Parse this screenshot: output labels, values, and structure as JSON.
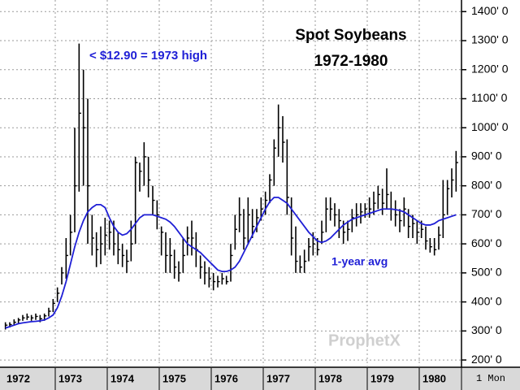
{
  "chart_data": {
    "type": "ohlc",
    "title": "Spot Soybeans",
    "subtitle": "1972-1980",
    "annotations": [
      "< $12.90 = 1973 high",
      "1-year avg"
    ],
    "watermark": "ProphetX",
    "period": "1 Mon",
    "years": [
      "1972",
      "1973",
      "1974",
      "1975",
      "1976",
      "1977",
      "1978",
      "1979",
      "1980"
    ],
    "ylim": [
      175,
      1440
    ],
    "yticks": [
      {
        "value": 200,
        "label": "200' 0"
      },
      {
        "value": 300,
        "label": "300' 0"
      },
      {
        "value": 400,
        "label": "400' 0"
      },
      {
        "value": 500,
        "label": "500' 0"
      },
      {
        "value": 600,
        "label": "600' 0"
      },
      {
        "value": 700,
        "label": "700' 0"
      },
      {
        "value": 800,
        "label": "800' 0"
      },
      {
        "value": 900,
        "label": "900' 0"
      },
      {
        "value": 1000,
        "label": "1000' 0"
      },
      {
        "value": 1100,
        "label": "1100' 0"
      },
      {
        "value": 1200,
        "label": "1200' 0"
      },
      {
        "value": 1300,
        "label": "1300' 0"
      },
      {
        "value": 1400,
        "label": "1400' 0"
      }
    ],
    "grid": true,
    "bar_color": "#000000",
    "avg_color": "#1f1fd6",
    "annotation_color": "#1f1fd6",
    "high": [
      330,
      330,
      340,
      345,
      355,
      360,
      355,
      360,
      355,
      360,
      380,
      410,
      450,
      520,
      620,
      700,
      1000,
      1290,
      1200,
      1100,
      700,
      640,
      660,
      690,
      680,
      680,
      640,
      600,
      580,
      680,
      900,
      880,
      950,
      900,
      800,
      750,
      660,
      640,
      620,
      580,
      540,
      620,
      660,
      680,
      640,
      560,
      540,
      520,
      500,
      490,
      500,
      490,
      600,
      700,
      760,
      720,
      760,
      720,
      720,
      760,
      780,
      840,
      960,
      1080,
      1040,
      960,
      760,
      660,
      560,
      580,
      620,
      640,
      620,
      680,
      760,
      760,
      740,
      720,
      680,
      680,
      720,
      740,
      740,
      740,
      760,
      780,
      800,
      790,
      860,
      780,
      750,
      720,
      760,
      720,
      700,
      680,
      680,
      660,
      620,
      620,
      660,
      820,
      820,
      860,
      920
    ],
    "low": [
      305,
      312,
      318,
      325,
      335,
      338,
      335,
      338,
      330,
      335,
      350,
      365,
      400,
      460,
      480,
      560,
      640,
      780,
      800,
      600,
      560,
      520,
      530,
      560,
      580,
      560,
      530,
      520,
      500,
      540,
      600,
      780,
      800,
      760,
      700,
      650,
      560,
      500,
      500,
      480,
      470,
      500,
      560,
      560,
      520,
      480,
      460,
      450,
      440,
      450,
      460,
      460,
      470,
      580,
      640,
      580,
      600,
      620,
      640,
      680,
      700,
      740,
      800,
      900,
      880,
      700,
      560,
      500,
      500,
      500,
      540,
      560,
      560,
      600,
      640,
      680,
      660,
      620,
      600,
      610,
      640,
      660,
      670,
      690,
      690,
      700,
      720,
      700,
      720,
      680,
      660,
      640,
      660,
      620,
      620,
      600,
      620,
      580,
      570,
      560,
      580,
      620,
      700,
      760,
      780
    ],
    "close": [
      320,
      322,
      330,
      338,
      345,
      348,
      345,
      350,
      342,
      352,
      368,
      395,
      430,
      500,
      560,
      640,
      800,
      1050,
      1000,
      800,
      620,
      580,
      600,
      630,
      640,
      600,
      580,
      560,
      540,
      600,
      880,
      850,
      900,
      820,
      750,
      700,
      640,
      560,
      560,
      520,
      500,
      560,
      620,
      620,
      580,
      520,
      500,
      480,
      470,
      470,
      480,
      470,
      560,
      650,
      700,
      620,
      700,
      660,
      690,
      720,
      750,
      820,
      930,
      1000,
      950,
      760,
      620,
      540,
      520,
      540,
      590,
      600,
      580,
      640,
      720,
      720,
      700,
      680,
      640,
      650,
      690,
      700,
      710,
      720,
      720,
      740,
      770,
      740,
      770,
      720,
      700,
      680,
      720,
      660,
      670,
      640,
      650,
      610,
      590,
      580,
      630,
      700,
      790,
      820,
      880
    ],
    "average": [
      310,
      315,
      320,
      325,
      328,
      330,
      332,
      333,
      335,
      338,
      345,
      355,
      380,
      420,
      470,
      530,
      590,
      640,
      680,
      710,
      725,
      735,
      735,
      725,
      690,
      660,
      640,
      630,
      635,
      650,
      670,
      690,
      700,
      700,
      700,
      695,
      690,
      685,
      675,
      660,
      640,
      620,
      600,
      590,
      580,
      570,
      555,
      540,
      525,
      510,
      505,
      505,
      510,
      520,
      540,
      570,
      600,
      630,
      660,
      690,
      720,
      745,
      760,
      760,
      750,
      740,
      720,
      700,
      680,
      660,
      640,
      625,
      610,
      605,
      610,
      620,
      635,
      650,
      665,
      675,
      685,
      690,
      695,
      700,
      705,
      710,
      715,
      720,
      720,
      720,
      718,
      715,
      710,
      700,
      690,
      680,
      670,
      665,
      665,
      670,
      680,
      685,
      690,
      695,
      700
    ]
  }
}
